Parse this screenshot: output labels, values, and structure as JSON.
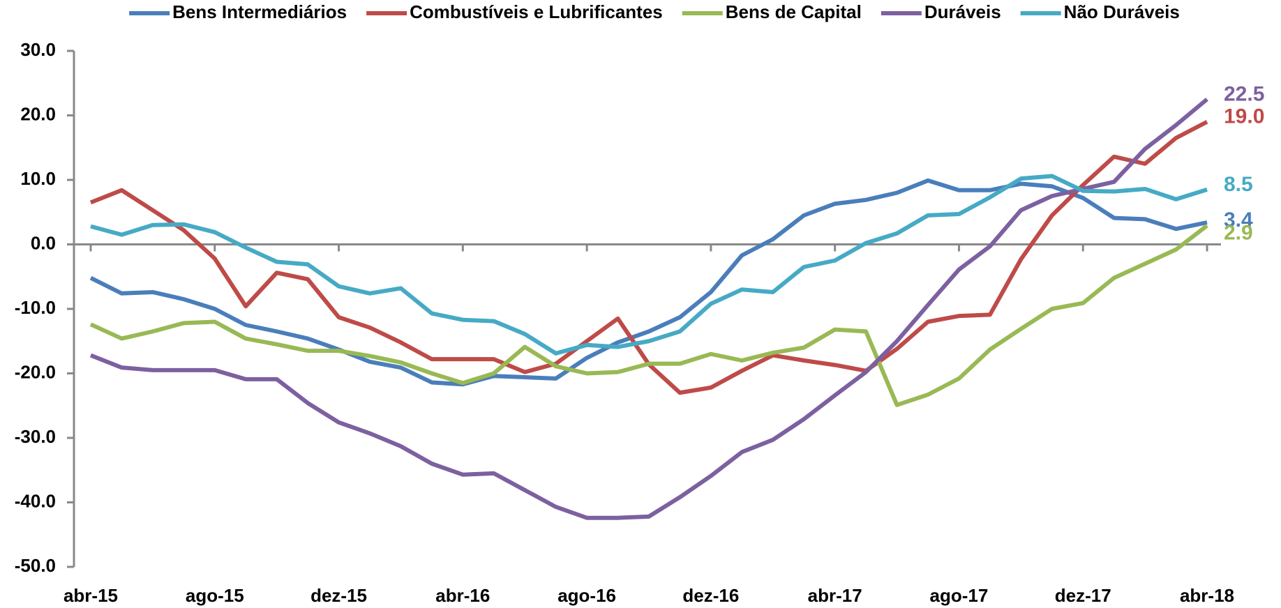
{
  "chart_data": {
    "type": "line",
    "categories": [
      "abr-15",
      null,
      null,
      null,
      "ago-15",
      null,
      null,
      null,
      "dez-15",
      null,
      null,
      null,
      "abr-16",
      null,
      null,
      null,
      "ago-16",
      null,
      null,
      null,
      "dez-16",
      null,
      null,
      null,
      "abr-17",
      null,
      null,
      null,
      "ago-17",
      null,
      null,
      null,
      "dez-17",
      null,
      null,
      null,
      "abr-18"
    ],
    "series": [
      {
        "name": "Bens Intermediários",
        "color": "#4a7ebb",
        "values": [
          -5.2,
          -7.6,
          -7.4,
          -8.5,
          -10,
          -12.5,
          -13.5,
          -14.6,
          -16.3,
          -18.2,
          -19.1,
          -21.4,
          -21.7,
          -20.4,
          -20.6,
          -20.8,
          -17.6,
          -15.2,
          -13.5,
          -11.3,
          -7.4,
          -1.7,
          0.8,
          4.5,
          6.3,
          6.9,
          8,
          9.9,
          8.4,
          8.4,
          9.4,
          9.0,
          7.2,
          4.1,
          3.9,
          2.4,
          3.4
        ],
        "value_labels": [
          null,
          null,
          null,
          null,
          null,
          null,
          null,
          null,
          null,
          null,
          null,
          null,
          null,
          null,
          null,
          null,
          null,
          null,
          null,
          null,
          null,
          null,
          null,
          null,
          null,
          null,
          null,
          null,
          null,
          null,
          null,
          null,
          null,
          null,
          null,
          null,
          "3.4"
        ]
      },
      {
        "name": "Combustíveis e Lubrificantes",
        "color": "#be4b48",
        "values": [
          6.5,
          8.4,
          5.3,
          2.2,
          -2.2,
          -9.6,
          -4.4,
          -5.4,
          -11.3,
          -12.9,
          -15.2,
          -17.8,
          -17.8,
          -17.8,
          -19.8,
          -18.5,
          -15,
          -11.5,
          -18.6,
          -23,
          -22.2,
          -19.6,
          -17.2,
          -18,
          -18.7,
          -19.6,
          -16.2,
          -12,
          -11.1,
          -10.9,
          -2.3,
          4.5,
          9.2,
          13.6,
          12.5,
          16.5,
          19.0
        ],
        "value_labels": [
          null,
          null,
          null,
          null,
          null,
          null,
          null,
          null,
          null,
          null,
          null,
          null,
          null,
          null,
          null,
          null,
          null,
          null,
          null,
          null,
          null,
          null,
          null,
          null,
          null,
          null,
          null,
          null,
          null,
          null,
          null,
          null,
          null,
          null,
          null,
          null,
          "19.0"
        ]
      },
      {
        "name": "Bens de Capital",
        "color": "#98b954",
        "values": [
          -12.4,
          -14.6,
          -13.5,
          -12.2,
          -12,
          -14.6,
          -15.5,
          -16.5,
          -16.5,
          -17.3,
          -18.3,
          -20,
          -21.5,
          -20,
          -15.9,
          -18.9,
          -20,
          -19.8,
          -18.5,
          -18.5,
          -17,
          -18,
          -16.8,
          -16,
          -13.2,
          -13.5,
          -24.9,
          -23.3,
          -20.8,
          -16.3,
          -13.1,
          -10,
          -9.1,
          -5.2,
          -3,
          -0.8,
          2.9
        ],
        "value_labels": [
          null,
          null,
          null,
          null,
          null,
          null,
          null,
          null,
          null,
          null,
          null,
          null,
          null,
          null,
          null,
          null,
          null,
          null,
          null,
          null,
          null,
          null,
          null,
          null,
          null,
          null,
          null,
          null,
          null,
          null,
          null,
          null,
          null,
          null,
          null,
          null,
          "2.9"
        ]
      },
      {
        "name": "Duráveis",
        "color": "#7d60a0",
        "values": [
          -17.2,
          -19.1,
          -19.5,
          -19.5,
          -19.5,
          -20.9,
          -20.9,
          -24.6,
          -27.6,
          -29.3,
          -31.3,
          -34,
          -35.7,
          -35.5,
          -38.1,
          -40.7,
          -42.4,
          -42.4,
          -42.2,
          -39.2,
          -35.9,
          -32.2,
          -30.3,
          -27.1,
          -23.4,
          -19.8,
          -15,
          -9.4,
          -3.9,
          -0.3,
          5.3,
          7.5,
          8.6,
          9.7,
          14.8,
          18.5,
          22.5
        ],
        "value_labels": [
          null,
          null,
          null,
          null,
          null,
          null,
          null,
          null,
          null,
          null,
          null,
          null,
          null,
          null,
          null,
          null,
          null,
          null,
          null,
          null,
          null,
          null,
          null,
          null,
          null,
          null,
          null,
          null,
          null,
          null,
          null,
          null,
          null,
          null,
          null,
          null,
          "22.5"
        ]
      },
      {
        "name": "Não Duráveis",
        "color": "#46aac5",
        "values": [
          2.8,
          1.5,
          3.0,
          3.1,
          1.9,
          -0.5,
          -2.7,
          -3.1,
          -6.5,
          -7.6,
          -6.8,
          -10.7,
          -11.7,
          -11.9,
          -13.9,
          -16.9,
          -15.6,
          -15.9,
          -15,
          -13.5,
          -9.2,
          -7,
          -7.4,
          -3.5,
          -2.5,
          0.2,
          1.7,
          4.5,
          4.7,
          7.3,
          10.2,
          10.6,
          8.3,
          8.2,
          8.6,
          7,
          8.5
        ],
        "value_labels": [
          null,
          null,
          null,
          null,
          null,
          null,
          null,
          null,
          null,
          null,
          null,
          null,
          null,
          null,
          null,
          null,
          null,
          null,
          null,
          null,
          null,
          null,
          null,
          null,
          null,
          null,
          null,
          null,
          null,
          null,
          null,
          null,
          null,
          null,
          null,
          null,
          "8.5"
        ]
      }
    ],
    "ylim": [
      -50,
      30
    ],
    "yticks": [
      {
        "value": -50,
        "label": "-50.0"
      },
      {
        "value": -40,
        "label": "-40.0"
      },
      {
        "value": -30,
        "label": "-30.0"
      },
      {
        "value": -20,
        "label": "-20.0"
      },
      {
        "value": -10,
        "label": "-10.0"
      },
      {
        "value": 0,
        "label": "0.0"
      },
      {
        "value": 10,
        "label": "10.0"
      },
      {
        "value": 20,
        "label": "20.0"
      },
      {
        "value": 30,
        "label": "30.0"
      }
    ],
    "legend": "top",
    "grid": false
  }
}
